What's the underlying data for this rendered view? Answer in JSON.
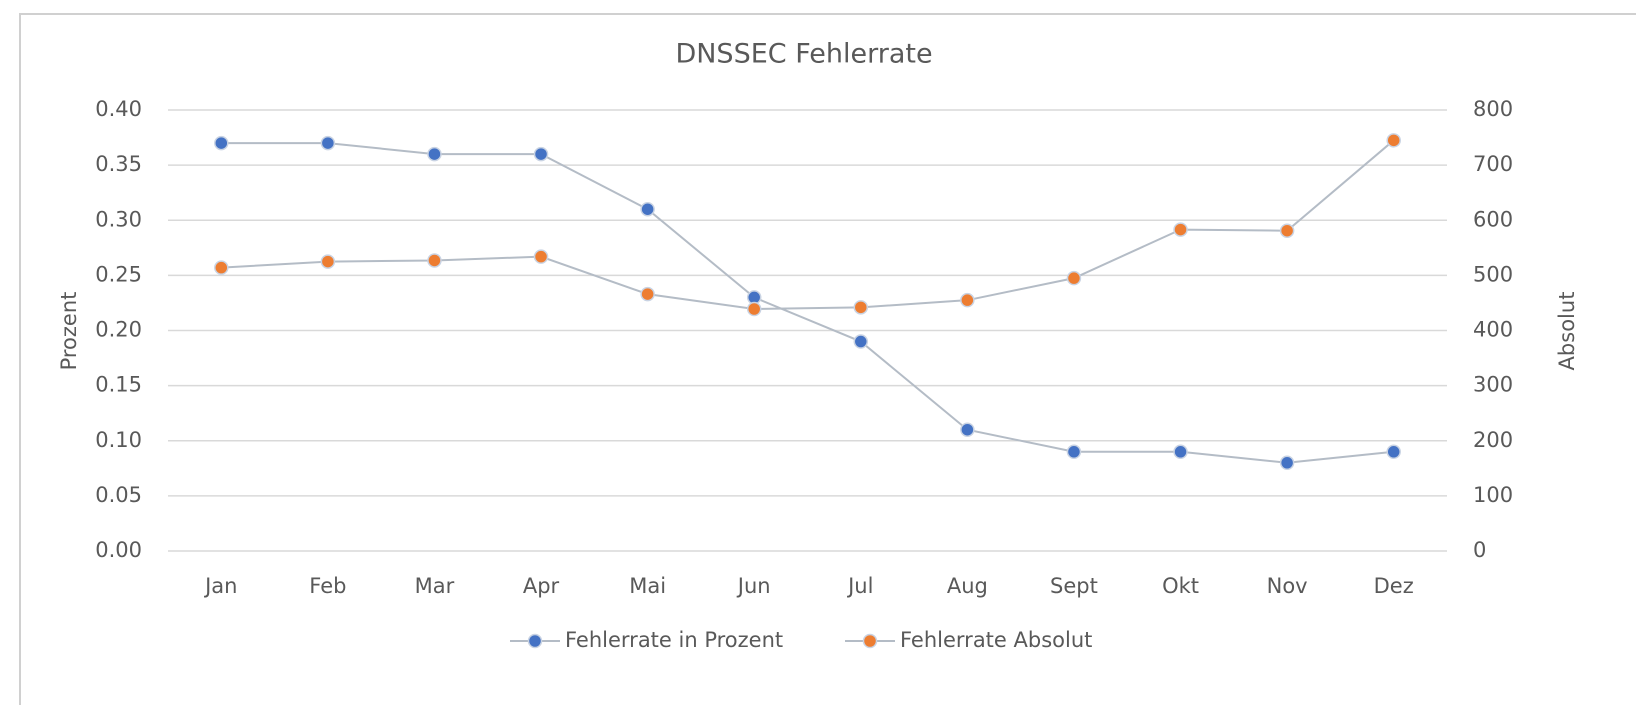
{
  "chart_data": {
    "type": "line",
    "title": "DNSSEC Fehlerrate",
    "categories": [
      "Jan",
      "Feb",
      "Mar",
      "Apr",
      "Mai",
      "Jun",
      "Jul",
      "Aug",
      "Sept",
      "Okt",
      "Nov",
      "Dez"
    ],
    "series": [
      {
        "name": "Fehlerrate in Prozent",
        "color": "#4472c4",
        "values": [
          0.37,
          0.37,
          0.36,
          0.36,
          0.31,
          0.23,
          0.19,
          0.11,
          0.09,
          0.09,
          0.08,
          0.09
        ]
      },
      {
        "name": "Fehlerrate Absolut",
        "color": "#ed7d31",
        "axis": "y2",
        "values": [
          514,
          525,
          527,
          534,
          466,
          439,
          442,
          455,
          495,
          583,
          581,
          745
        ]
      }
    ],
    "line_color": "#b4bcc6",
    "ylabel": "Prozent",
    "y2label": "Absolut",
    "ylim": [
      0,
      0.4
    ],
    "yticks": [
      {
        "value": 0,
        "label": "0.00"
      },
      {
        "value": 0.05,
        "label": "0.05"
      },
      {
        "value": 0.1,
        "label": "0.10"
      },
      {
        "value": 0.15,
        "label": "0.15"
      },
      {
        "value": 0.2,
        "label": "0.20"
      },
      {
        "value": 0.25,
        "label": "0.25"
      },
      {
        "value": 0.3,
        "label": "0.30"
      },
      {
        "value": 0.35,
        "label": "0.35"
      },
      {
        "value": 0.4,
        "label": "0.40"
      }
    ],
    "y2lim": [
      0,
      800
    ],
    "y2ticks": [
      0,
      100,
      200,
      300,
      400,
      500,
      600,
      700,
      800
    ],
    "grid": true,
    "legend": "bottom"
  }
}
